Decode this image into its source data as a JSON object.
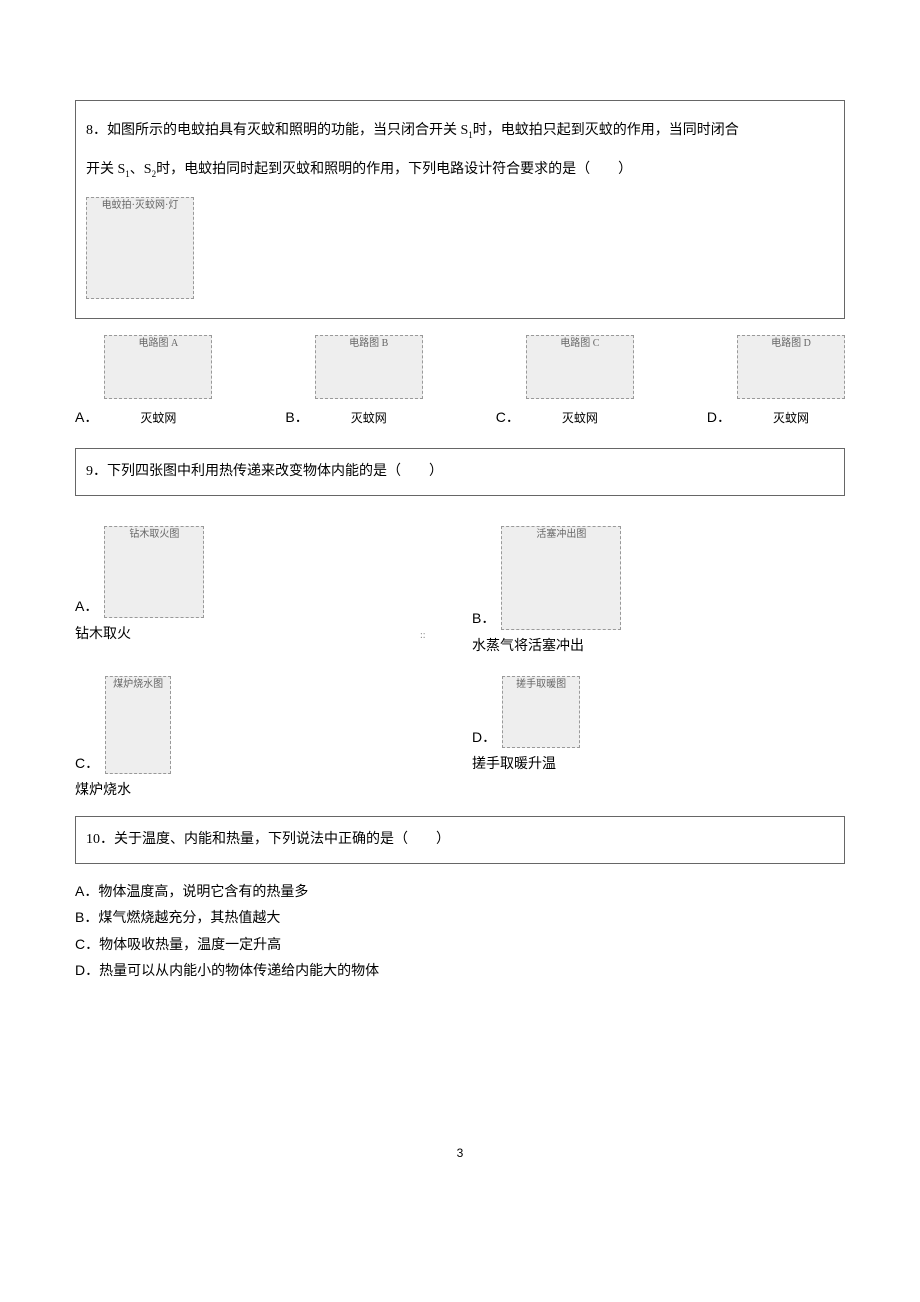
{
  "q8": {
    "number": "8．",
    "text_line1": "如图所示的电蚊拍具有灭蚊和照明的功能，当只闭合开关 S",
    "sub1": "1",
    "text_line1b": "时，电蚊拍只起到灭蚊的作用，当同时闭合",
    "text_line2a": "开关 S",
    "sub2a": "1",
    "text_line2b": "、S",
    "sub2b": "2",
    "text_line2c": "时，电蚊拍同时起到灭蚊和照明的作用，下列电路设计符合要求的是（　　）",
    "main_figure_label": "电蚊拍·灭蚊网·灯",
    "options": {
      "A": {
        "label": "A．",
        "caption": "灭蚊网",
        "fig": "电路图 A"
      },
      "B": {
        "label": "B．",
        "caption": "灭蚊网",
        "fig": "电路图 B"
      },
      "C": {
        "label": "C．",
        "caption": "灭蚊网",
        "fig": "电路图 C"
      },
      "D": {
        "label": "D．",
        "caption": "灭蚊网",
        "fig": "电路图 D"
      }
    }
  },
  "q9": {
    "number": "9．",
    "text": "下列四张图中利用热传递来改变物体内能的是（　　）",
    "options": {
      "A": {
        "label": "A．",
        "caption": "钻木取火",
        "fig": "钻木取火图"
      },
      "B": {
        "label": "B．",
        "caption": "水蒸气将活塞冲出",
        "fig": "活塞冲出图"
      },
      "C": {
        "label": "C．",
        "caption": "煤炉烧水",
        "fig": "煤炉烧水图"
      },
      "D": {
        "label": "D．",
        "caption": "搓手取暖升温",
        "fig": "搓手取暖图"
      }
    }
  },
  "q10": {
    "number": "10．",
    "text": "关于温度、内能和热量，下列说法中正确的是（　　）",
    "options": {
      "A": "A．物体温度高，说明它含有的热量多",
      "B": "B．煤气燃烧越充分，其热值越大",
      "C": "C．物体吸收热量，温度一定升高",
      "D": "D．热量可以从内能小的物体传递给内能大的物体"
    }
  },
  "page_number": "3",
  "center_mark": "::"
}
